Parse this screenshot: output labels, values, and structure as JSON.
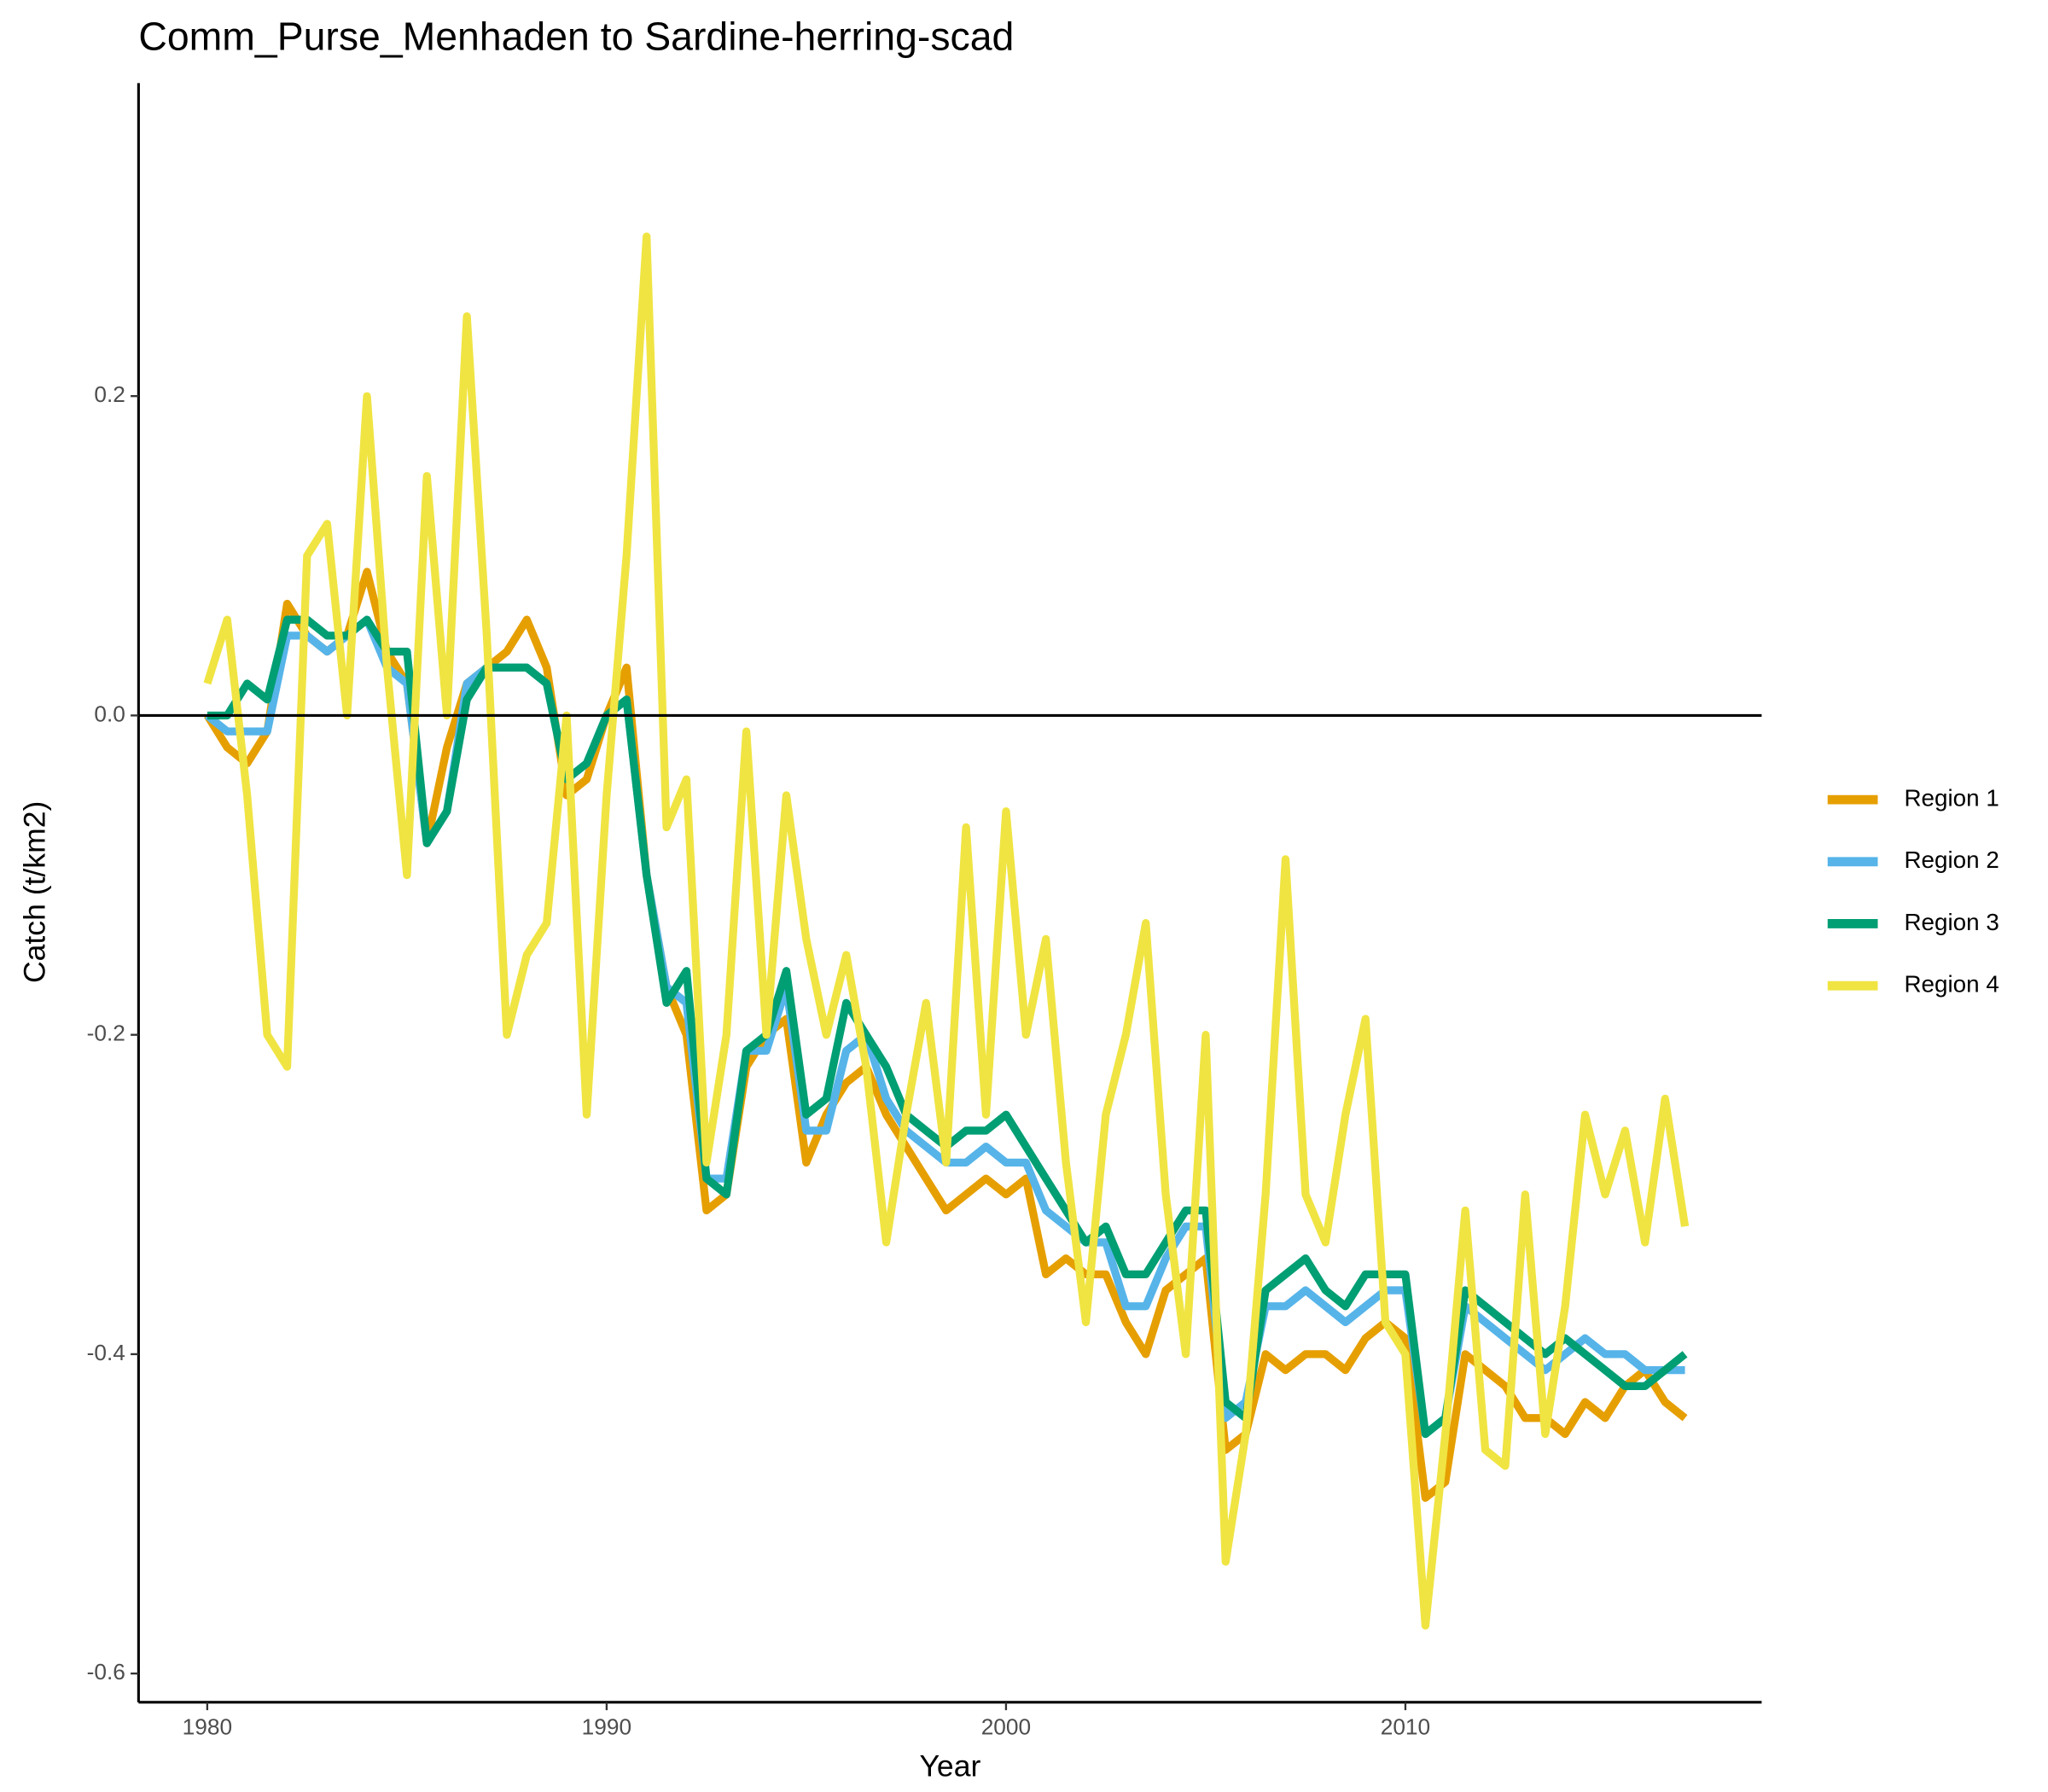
{
  "chart_data": {
    "type": "line",
    "title": "Comm_Purse_Menhaden to Sardine-herring-scad",
    "x_label": "Year",
    "y_label": "Catch (t/km2)",
    "x": [
      1980,
      1980.5,
      1981,
      1981.5,
      1982,
      1982.5,
      1983,
      1983.5,
      1984,
      1984.5,
      1985,
      1985.5,
      1986,
      1986.5,
      1987,
      1987.5,
      1988,
      1988.5,
      1989,
      1989.5,
      1990,
      1990.5,
      1991,
      1991.5,
      1992,
      1992.5,
      1993,
      1993.5,
      1994,
      1994.5,
      1995,
      1995.5,
      1996,
      1996.5,
      1997,
      1997.5,
      1998,
      1998.5,
      1999,
      1999.5,
      2000,
      2000.5,
      2001,
      2001.5,
      2002,
      2002.5,
      2003,
      2003.5,
      2004,
      2004.5,
      2005,
      2005.5,
      2006,
      2006.5,
      2007,
      2007.5,
      2008,
      2008.5,
      2009,
      2009.5,
      2010,
      2010.5,
      2011,
      2011.5,
      2012,
      2012.5,
      2013,
      2013.5,
      2014,
      2014.5,
      2015,
      2015.5,
      2016,
      2016.5,
      2017
    ],
    "series": [
      {
        "name": "Region 1",
        "color": "#E69F00",
        "values": [
          0,
          -0.02,
          -0.03,
          -0.01,
          0.07,
          0.05,
          0.04,
          0.05,
          0.09,
          0.04,
          0.02,
          -0.08,
          -0.02,
          0.02,
          0.03,
          0.04,
          0.06,
          0.03,
          -0.05,
          -0.04,
          0.0,
          0.03,
          -0.1,
          -0.17,
          -0.2,
          -0.31,
          -0.3,
          -0.22,
          -0.2,
          -0.19,
          -0.28,
          -0.25,
          -0.23,
          -0.22,
          -0.25,
          -0.27,
          -0.29,
          -0.31,
          -0.3,
          -0.29,
          -0.3,
          -0.29,
          -0.35,
          -0.34,
          -0.35,
          -0.35,
          -0.38,
          -0.4,
          -0.36,
          -0.35,
          -0.34,
          -0.46,
          -0.45,
          -0.4,
          -0.41,
          -0.4,
          -0.4,
          -0.41,
          -0.39,
          -0.38,
          -0.39,
          -0.49,
          -0.48,
          -0.4,
          -0.41,
          -0.42,
          -0.44,
          -0.44,
          -0.45,
          -0.43,
          -0.44,
          -0.42,
          -0.41,
          -0.43,
          -0.44
        ]
      },
      {
        "name": "Region 2",
        "color": "#56B4E9",
        "values": [
          0,
          -0.01,
          -0.01,
          -0.01,
          0.05,
          0.05,
          0.04,
          0.05,
          0.06,
          0.03,
          0.02,
          -0.08,
          -0.06,
          0.02,
          0.03,
          0.03,
          0.03,
          0.02,
          -0.04,
          -0.03,
          0.0,
          0.01,
          -0.1,
          -0.17,
          -0.18,
          -0.29,
          -0.29,
          -0.21,
          -0.21,
          -0.17,
          -0.26,
          -0.26,
          -0.21,
          -0.2,
          -0.24,
          -0.26,
          -0.27,
          -0.28,
          -0.28,
          -0.27,
          -0.28,
          -0.28,
          -0.31,
          -0.32,
          -0.33,
          -0.33,
          -0.37,
          -0.37,
          -0.34,
          -0.32,
          -0.32,
          -0.44,
          -0.43,
          -0.37,
          -0.37,
          -0.36,
          -0.37,
          -0.38,
          -0.37,
          -0.36,
          -0.36,
          -0.45,
          -0.44,
          -0.37,
          -0.38,
          -0.39,
          -0.4,
          -0.41,
          -0.4,
          -0.39,
          -0.4,
          -0.4,
          -0.41,
          -0.41,
          -0.41
        ]
      },
      {
        "name": "Region 3",
        "color": "#009E73",
        "values": [
          0,
          0.0,
          0.02,
          0.01,
          0.06,
          0.06,
          0.05,
          0.05,
          0.06,
          0.04,
          0.04,
          -0.08,
          -0.06,
          0.01,
          0.03,
          0.03,
          0.03,
          0.02,
          -0.04,
          -0.03,
          0.0,
          0.01,
          -0.1,
          -0.18,
          -0.16,
          -0.29,
          -0.3,
          -0.21,
          -0.2,
          -0.16,
          -0.25,
          -0.24,
          -0.18,
          -0.2,
          -0.22,
          -0.25,
          -0.26,
          -0.27,
          -0.26,
          -0.26,
          -0.25,
          -0.27,
          -0.29,
          -0.31,
          -0.33,
          -0.32,
          -0.35,
          -0.35,
          -0.33,
          -0.31,
          -0.31,
          -0.43,
          -0.44,
          -0.36,
          -0.35,
          -0.34,
          -0.36,
          -0.37,
          -0.35,
          -0.35,
          -0.35,
          -0.45,
          -0.44,
          -0.36,
          -0.37,
          -0.38,
          -0.39,
          -0.4,
          -0.39,
          -0.4,
          -0.41,
          -0.42,
          -0.42,
          -0.41,
          -0.4
        ]
      },
      {
        "name": "Region 4",
        "color": "#F0E442",
        "values": [
          0.02,
          0.06,
          -0.05,
          -0.2,
          -0.22,
          0.1,
          0.12,
          0.0,
          0.2,
          0.03,
          -0.1,
          0.15,
          0.0,
          0.25,
          0.05,
          -0.2,
          -0.15,
          -0.13,
          0.0,
          -0.25,
          -0.05,
          0.1,
          0.3,
          -0.07,
          -0.04,
          -0.28,
          -0.2,
          -0.01,
          -0.2,
          -0.05,
          -0.14,
          -0.2,
          -0.15,
          -0.22,
          -0.33,
          -0.25,
          -0.18,
          -0.28,
          -0.07,
          -0.25,
          -0.06,
          -0.2,
          -0.14,
          -0.28,
          -0.38,
          -0.25,
          -0.2,
          -0.13,
          -0.3,
          -0.4,
          -0.2,
          -0.53,
          -0.45,
          -0.3,
          -0.09,
          -0.3,
          -0.33,
          -0.25,
          -0.19,
          -0.38,
          -0.4,
          -0.57,
          -0.45,
          -0.31,
          -0.46,
          -0.47,
          -0.3,
          -0.45,
          -0.37,
          -0.25,
          -0.3,
          -0.26,
          -0.33,
          -0.24,
          -0.32
        ]
      }
    ],
    "xlim": [
      1978.28,
      2018.92
    ],
    "ylim": [
      -0.618,
      0.396
    ],
    "xticks": [
      1980,
      1990,
      2000,
      2010
    ],
    "yticks": [
      -0.6,
      -0.4,
      -0.2,
      {
        "value": 0,
        "label": "0.0"
      },
      0.2
    ],
    "hline": 0,
    "grid": false,
    "legend": "right"
  }
}
